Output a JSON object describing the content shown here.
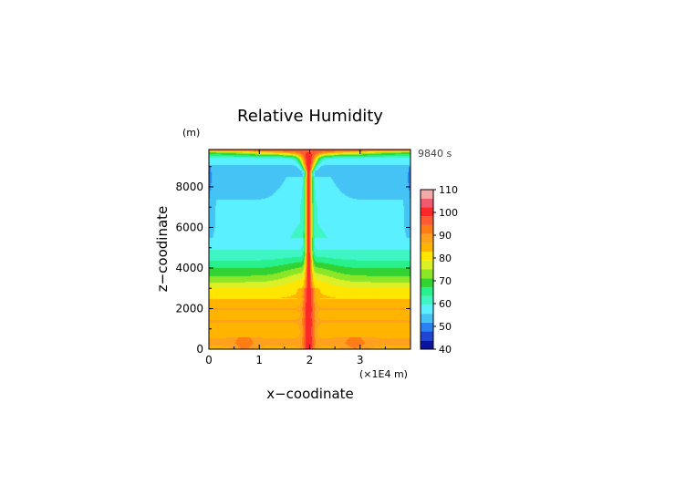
{
  "chart_data": {
    "type": "heatmap",
    "title": "Relative Humidity",
    "xlabel": "x−coodinate",
    "ylabel": "z−coodinate",
    "x_unit": "(×1E4 m)",
    "y_unit": "(m)",
    "time_label": "9840 s",
    "xlim": [
      0,
      4
    ],
    "ylim": [
      0,
      9840
    ],
    "x_ticks": [
      "0",
      "1",
      "2",
      "3"
    ],
    "x_tick_values": [
      0,
      1,
      2,
      3
    ],
    "y_ticks": [
      "0",
      "2000",
      "4000",
      "6000",
      "8000"
    ],
    "y_tick_values": [
      0,
      2000,
      4000,
      6000,
      8000
    ],
    "grid": false,
    "colorbar": {
      "levels": [
        "40",
        "50",
        "60",
        "70",
        "80",
        "90",
        "100",
        "110"
      ],
      "level_values": [
        40,
        50,
        60,
        70,
        80,
        90,
        100,
        110
      ],
      "colors": [
        "#0a14a0",
        "#1e46d2",
        "#2a82f0",
        "#46c3f5",
        "#5af0ff",
        "#3ef5c3",
        "#28f08c",
        "#32d232",
        "#8ce628",
        "#dcf028",
        "#ffe600",
        "#ffb400",
        "#ffa01e",
        "#ff7d14",
        "#ff5a32",
        "#ff2828",
        "#f05a6e",
        "#f5aaaa"
      ]
    },
    "profile": {
      "z": [
        0,
        300,
        800,
        1400,
        1700,
        2000,
        2300,
        2700,
        3000,
        3300,
        3700,
        4200,
        4600,
        5200,
        6200,
        7000,
        7800,
        8500,
        9000,
        9400,
        9700,
        9840
      ],
      "rh": [
        85,
        88,
        85,
        87,
        85,
        87,
        84,
        81,
        79,
        75,
        70,
        65,
        61,
        58,
        56,
        56,
        55,
        54,
        55,
        58,
        70,
        101
      ]
    },
    "core": {
      "x_center": 1.98,
      "z_top": 9840,
      "rh_core": 102
    }
  }
}
